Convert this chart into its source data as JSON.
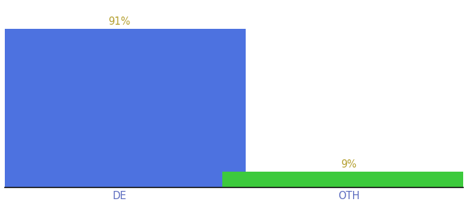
{
  "categories": [
    "DE",
    "OTH"
  ],
  "values": [
    91,
    9
  ],
  "bar_colors": [
    "#4d72e0",
    "#3dca3d"
  ],
  "label_color": "#b5a030",
  "label_texts": [
    "91%",
    "9%"
  ],
  "ylim": [
    0,
    105
  ],
  "background_color": "#ffffff",
  "tick_color": "#5b6bbf",
  "label_fontsize": 10.5,
  "tick_fontsize": 10.5,
  "bar_width": 0.55,
  "x_positions": [
    0.25,
    0.75
  ],
  "xlim": [
    0.0,
    1.0
  ]
}
